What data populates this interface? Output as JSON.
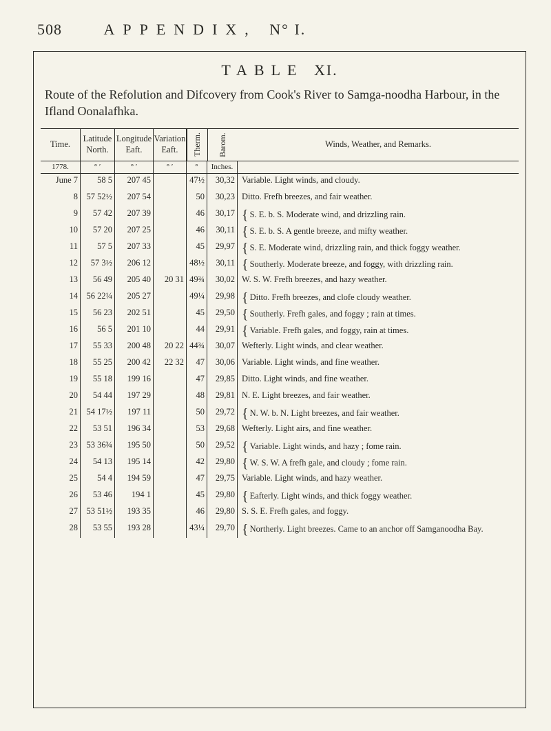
{
  "page": {
    "pagenum": "508",
    "appendix": "APPENDIX,",
    "nno": "N° I."
  },
  "tableTitle": {
    "label": "TABLE",
    "num": "XI."
  },
  "subtitle": "Route of the Refolution and Difcovery from Cook's River to Samga-noodha Harbour, in the Ifland Oonalafhka.",
  "headers": {
    "time": "Time.",
    "lat": "Latitude North.",
    "lon": "Longitude Eaft.",
    "var": "Variation Eaft.",
    "therm": "Therm.",
    "barom": "Barom.",
    "remarks": "Winds, Weather, and Remarks."
  },
  "subheaders": {
    "year": "1778.",
    "deg": "°   ′",
    "deg2": "°   ′",
    "deg3": "°   ′",
    "thermU": "°",
    "baromU": "Inches."
  },
  "rows": [
    {
      "time": "June  7",
      "lat": "58  5",
      "lon": "207 45",
      "var": "",
      "therm": "47½",
      "barom": "30,32",
      "rem": "Variable.  Light winds, and cloudy."
    },
    {
      "time": "8",
      "lat": "57 52½",
      "lon": "207 54",
      "var": "",
      "therm": "50",
      "barom": "30,23",
      "rem": "Ditto.  Frefh breezes, and fair weather."
    },
    {
      "time": "9",
      "lat": "57 42",
      "lon": "207 39",
      "var": "",
      "therm": "46",
      "barom": "30,17",
      "brace": true,
      "rem": "S. E. b. S.  Moderate wind, and drizzling rain."
    },
    {
      "time": "10",
      "lat": "57 20",
      "lon": "207 25",
      "var": "",
      "therm": "46",
      "barom": "30,11",
      "brace": true,
      "rem": "S. E. b. S.  A gentle breeze, and mifty weather."
    },
    {
      "time": "11",
      "lat": "57  5",
      "lon": "207 33",
      "var": "",
      "therm": "45",
      "barom": "29,97",
      "brace": true,
      "rem": "S. E.  Moderate wind, drizzling rain, and thick foggy weather."
    },
    {
      "time": "12",
      "lat": "57  3½",
      "lon": "206 12",
      "var": "",
      "therm": "48½",
      "barom": "30,11",
      "brace": true,
      "rem": "Southerly.  Moderate breeze, and foggy, with drizzling rain."
    },
    {
      "time": "13",
      "lat": "56 49",
      "lon": "205 40",
      "var": "20 31",
      "therm": "49¾",
      "barom": "30,02",
      "rem": "W. S. W. Frefh breezes, and hazy weather."
    },
    {
      "time": "14",
      "lat": "56 22¼",
      "lon": "205 27",
      "var": "",
      "therm": "49¼",
      "barom": "29,98",
      "brace": true,
      "rem": "Ditto.  Frefh breezes, and clofe cloudy weather."
    },
    {
      "time": "15",
      "lat": "56 23",
      "lon": "202 51",
      "var": "",
      "therm": "45",
      "barom": "29,50",
      "brace": true,
      "rem": "Southerly.  Frefh gales, and foggy ; rain at times."
    },
    {
      "time": "16",
      "lat": "56  5",
      "lon": "201 10",
      "var": "",
      "therm": "44",
      "barom": "29,91",
      "brace": true,
      "rem": "Variable.  Frefh gales, and foggy, rain at times."
    },
    {
      "time": "17",
      "lat": "55 33",
      "lon": "200 48",
      "var": "20 22",
      "therm": "44¾",
      "barom": "30,07",
      "rem": "Wefterly.  Light winds, and clear weather."
    },
    {
      "time": "18",
      "lat": "55 25",
      "lon": "200 42",
      "var": "22 32",
      "therm": "47",
      "barom": "30,06",
      "rem": "Variable.  Light winds, and fine weather."
    },
    {
      "time": "19",
      "lat": "55 18",
      "lon": "199 16",
      "var": "",
      "therm": "47",
      "barom": "29,85",
      "rem": "Ditto.  Light winds, and fine weather."
    },
    {
      "time": "20",
      "lat": "54 44",
      "lon": "197 29",
      "var": "",
      "therm": "48",
      "barom": "29,81",
      "rem": "N. E.  Light breezes, and fair weather."
    },
    {
      "time": "21",
      "lat": "54 17½",
      "lon": "197 11",
      "var": "",
      "therm": "50",
      "barom": "29,72",
      "brace": true,
      "rem": "N. W. b. N.  Light breezes, and fair weather."
    },
    {
      "time": "22",
      "lat": "53 51",
      "lon": "196 34",
      "var": "",
      "therm": "53",
      "barom": "29,68",
      "rem": "Wefterly.  Light airs, and fine weather."
    },
    {
      "time": "23",
      "lat": "53 36¾",
      "lon": "195 50",
      "var": "",
      "therm": "50",
      "barom": "29,52",
      "brace": true,
      "rem": "Variable.  Light winds, and hazy ; fome rain."
    },
    {
      "time": "24",
      "lat": "54 13",
      "lon": "195 14",
      "var": "",
      "therm": "42",
      "barom": "29,80",
      "brace": true,
      "rem": "W. S. W.  A frefh gale, and cloudy ; fome rain."
    },
    {
      "time": "25",
      "lat": "54  4",
      "lon": "194 59",
      "var": "",
      "therm": "47",
      "barom": "29,75",
      "rem": "Variable.  Light winds, and hazy weather."
    },
    {
      "time": "26",
      "lat": "53 46",
      "lon": "194  1",
      "var": "",
      "therm": "45",
      "barom": "29,80",
      "brace": true,
      "rem": "Eafterly.  Light winds, and thick foggy weather."
    },
    {
      "time": "27",
      "lat": "53 51½",
      "lon": "193 35",
      "var": "",
      "therm": "46",
      "barom": "29,80",
      "rem": "S. S. E.  Frefh gales, and foggy."
    },
    {
      "time": "28",
      "lat": "53 55",
      "lon": "193 28",
      "var": "",
      "therm": "43¼",
      "barom": "29,70",
      "brace": true,
      "rem": "Northerly.  Light breezes.  Came to an anchor off Samganoodha Bay."
    }
  ],
  "style": {
    "background": "#f5f3ea",
    "ink": "#2a2a26",
    "pageWidth": 800,
    "pageHeight": 1060,
    "colWidths": {
      "time": 58,
      "lat": 50,
      "lon": 56,
      "var": 48,
      "therm": 30,
      "barom": 44
    }
  }
}
